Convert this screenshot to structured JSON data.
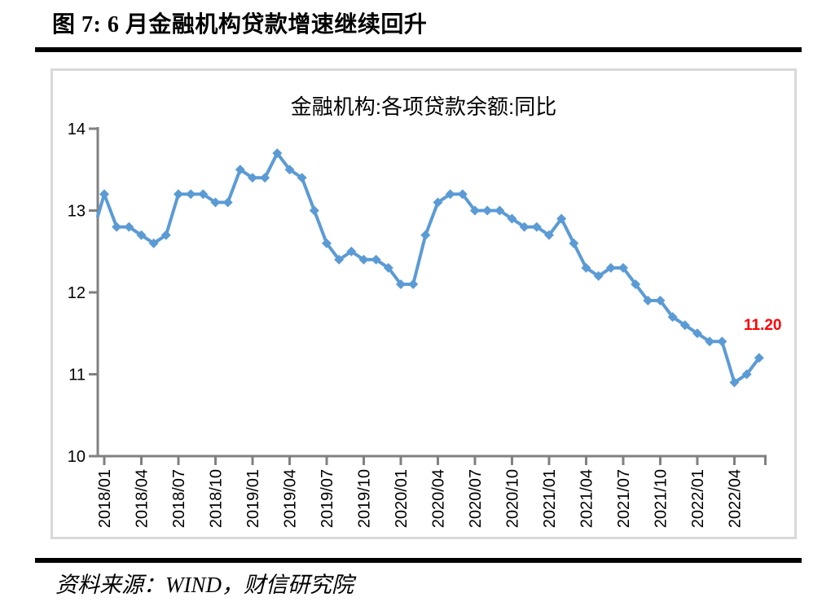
{
  "figure": {
    "title": "图 7: 6 月金融机构贷款增速继续回升",
    "source": "资料来源：WIND，财信研究院"
  },
  "chart_data": {
    "type": "line",
    "title": "金融机构:各项贷款余额:同比",
    "x": [
      "2018/01",
      "2018/02",
      "2018/03",
      "2018/04",
      "2018/05",
      "2018/06",
      "2018/07",
      "2018/08",
      "2018/09",
      "2018/10",
      "2018/11",
      "2018/12",
      "2019/01",
      "2019/02",
      "2019/03",
      "2019/04",
      "2019/05",
      "2019/06",
      "2019/07",
      "2019/08",
      "2019/09",
      "2019/10",
      "2019/11",
      "2019/12",
      "2020/01",
      "2020/02",
      "2020/03",
      "2020/04",
      "2020/05",
      "2020/06",
      "2020/07",
      "2020/08",
      "2020/09",
      "2020/10",
      "2020/11",
      "2020/12",
      "2021/01",
      "2021/02",
      "2021/03",
      "2021/04",
      "2021/05",
      "2021/06",
      "2021/07",
      "2021/08",
      "2021/09",
      "2021/10",
      "2021/11",
      "2021/12",
      "2022/01",
      "2022/02",
      "2022/03",
      "2022/04",
      "2022/05",
      "2022/06"
    ],
    "values": [
      13.2,
      12.8,
      12.8,
      12.7,
      12.6,
      12.7,
      13.2,
      13.2,
      13.2,
      13.1,
      13.1,
      13.5,
      13.4,
      13.4,
      13.7,
      13.5,
      13.4,
      13.0,
      12.6,
      12.4,
      12.5,
      12.4,
      12.4,
      12.3,
      12.1,
      12.1,
      12.7,
      13.1,
      13.2,
      13.2,
      13.0,
      13.0,
      13.0,
      12.9,
      12.8,
      12.8,
      12.7,
      12.9,
      12.6,
      12.3,
      12.2,
      12.3,
      12.3,
      12.1,
      11.9,
      11.9,
      11.7,
      11.6,
      11.5,
      11.4,
      11.4,
      10.9,
      11.0,
      11.2
    ],
    "x_tick_every": 3,
    "x_tick_labels": [
      "2018/01",
      "2018/04",
      "2018/07",
      "2018/10",
      "2019/01",
      "2019/04",
      "2019/07",
      "2019/10",
      "2020/01",
      "2020/04",
      "2020/07",
      "2020/10",
      "2021/01",
      "2021/04",
      "2021/07",
      "2021/10",
      "2022/01",
      "2022/04"
    ],
    "y_ticks": [
      10,
      11,
      12,
      13,
      14
    ],
    "ylim": [
      10,
      14
    ],
    "xlabel": "",
    "ylabel": "",
    "grid": false,
    "legend_position": "none",
    "marker": "diamond",
    "line_color": "#5B9BD5",
    "axis_color": "#808080",
    "tick_label_color": "#000000",
    "lead_in_value_at_axis": 12.93,
    "annotation": {
      "text": "11.20",
      "color": "#FF0000",
      "applies_to": "2022/06"
    }
  }
}
